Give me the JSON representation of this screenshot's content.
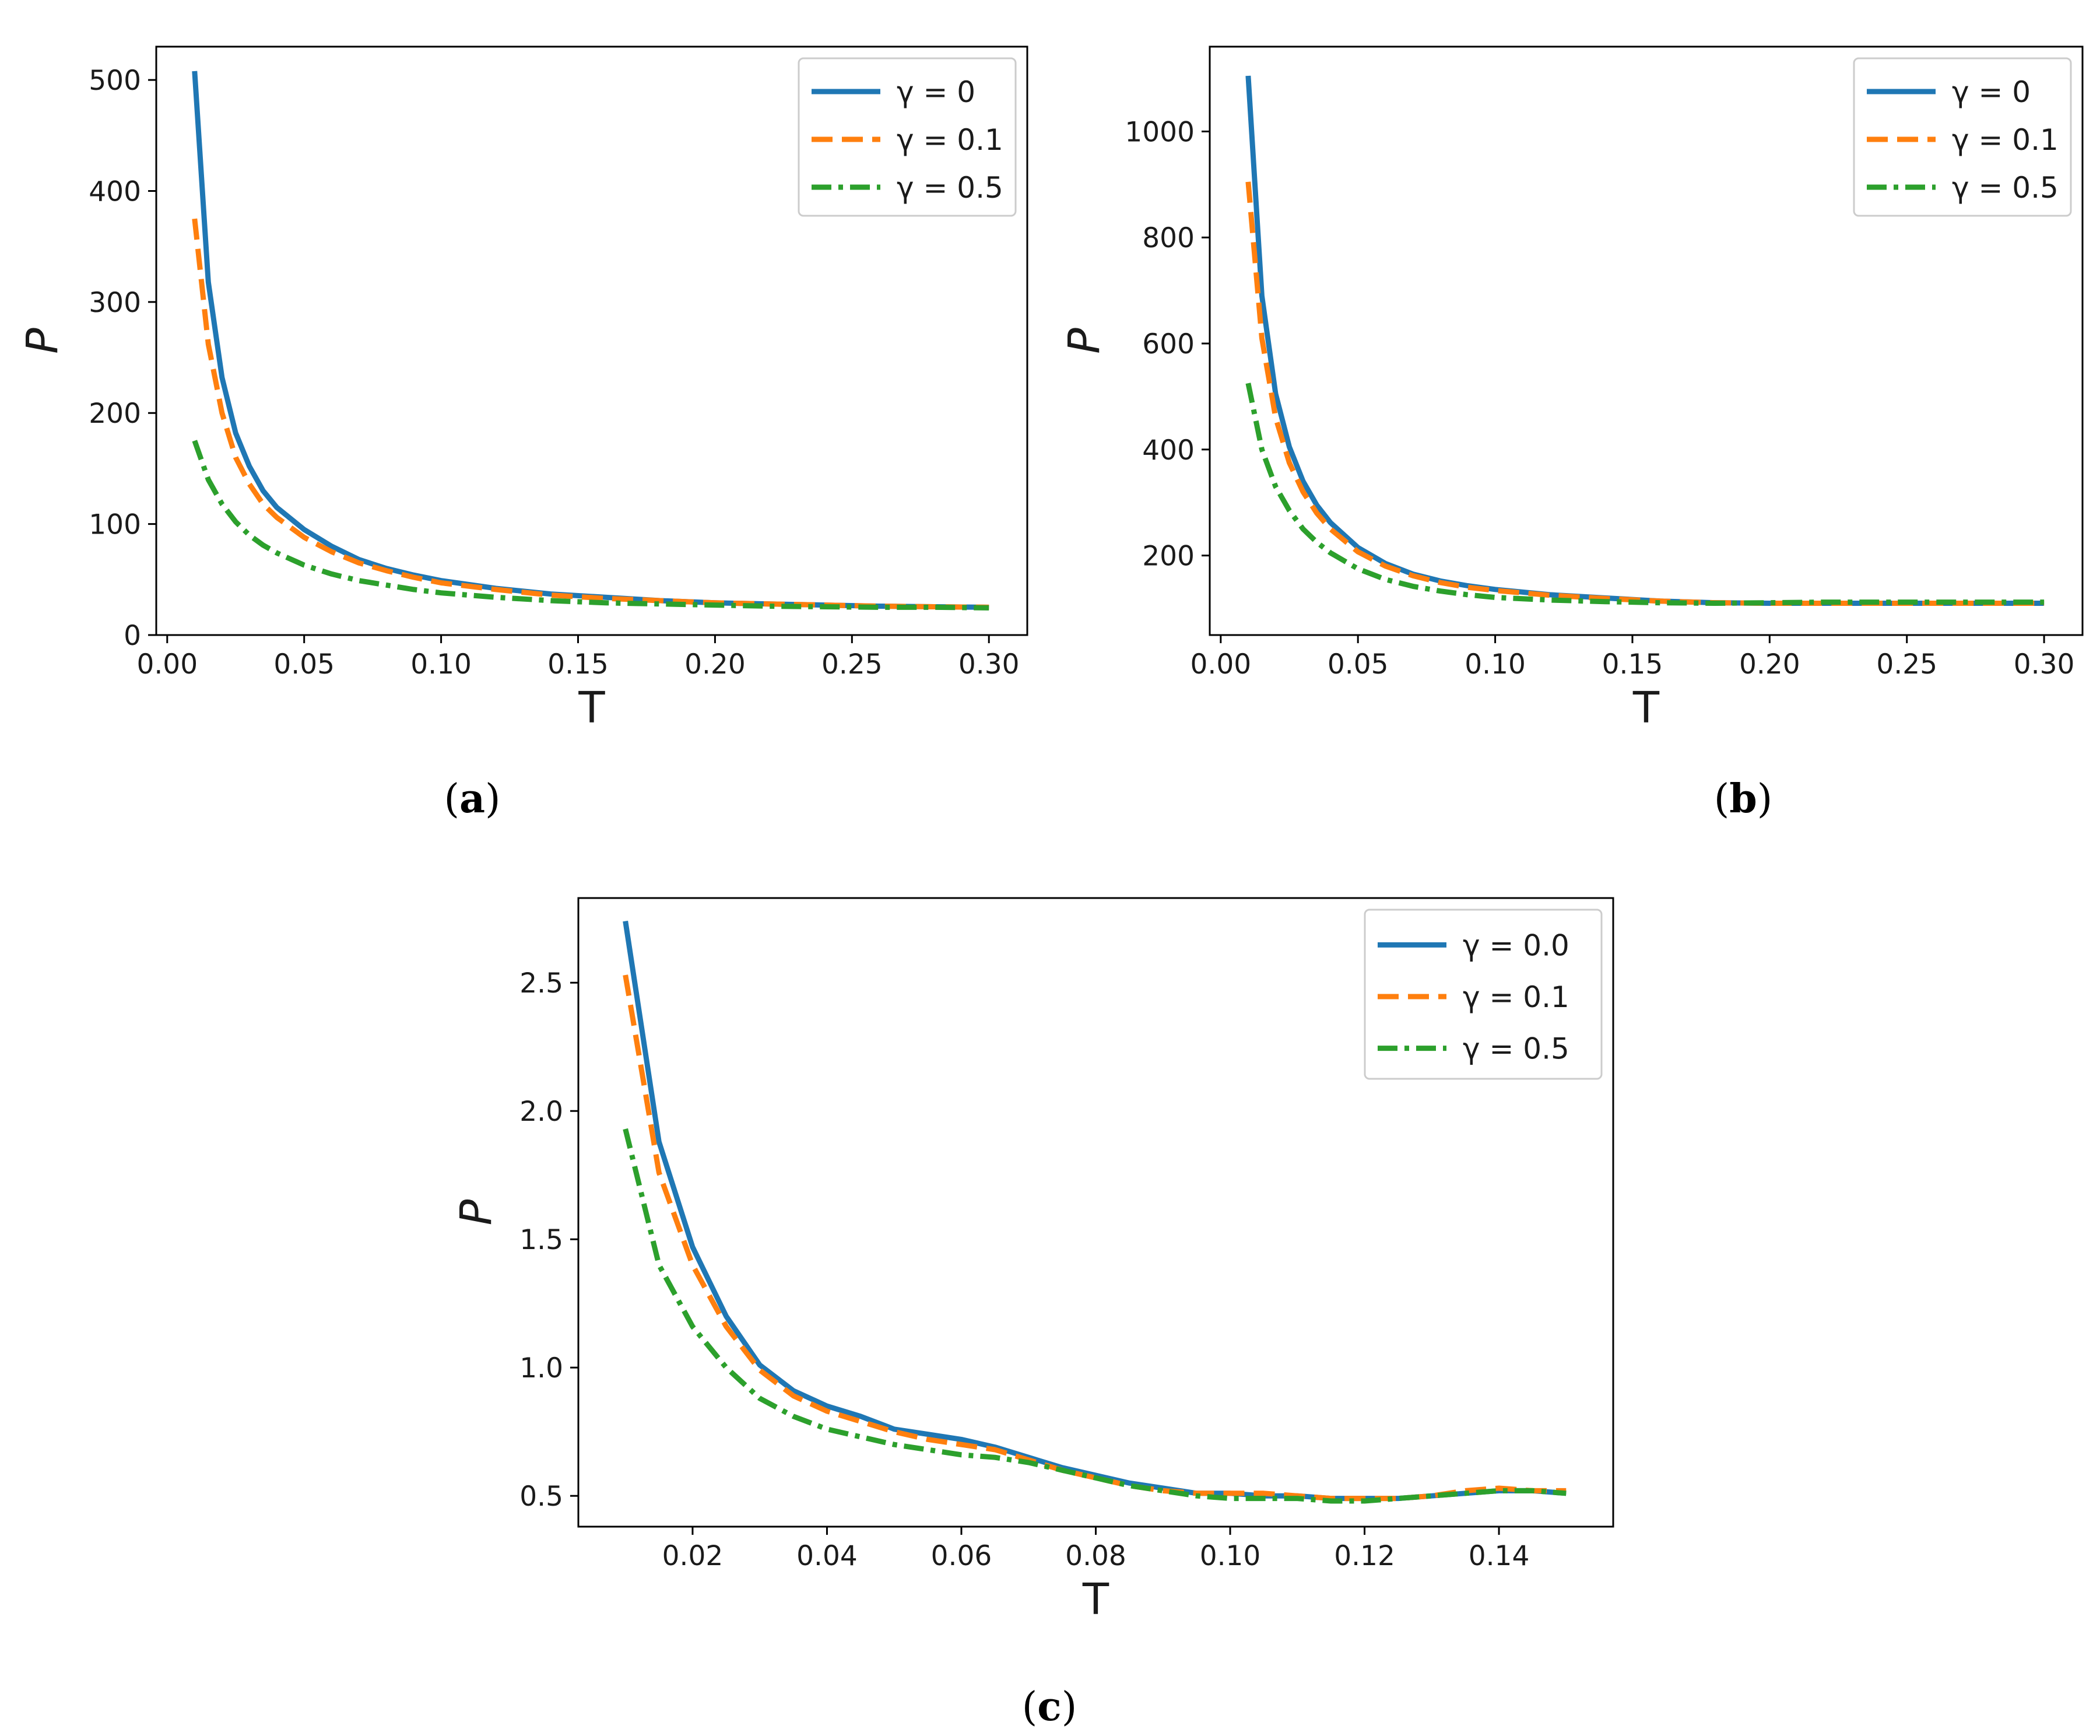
{
  "chart_data": [
    {
      "type": "line",
      "panel_label": "a",
      "xlabel": "T",
      "ylabel": "P",
      "xlim": [
        -0.004,
        0.314
      ],
      "ylim": [
        0,
        530
      ],
      "xticks": [
        0.0,
        0.05,
        0.1,
        0.15,
        0.2,
        0.25,
        0.3
      ],
      "xtick_labels": [
        "0.00",
        "0.05",
        "0.10",
        "0.15",
        "0.20",
        "0.25",
        "0.30"
      ],
      "yticks": [
        0,
        100,
        200,
        300,
        400,
        500
      ],
      "ytick_labels": [
        "0",
        "100",
        "200",
        "300",
        "400",
        "500"
      ],
      "legend_position": "top-right",
      "grid": false,
      "x": [
        0.01,
        0.015,
        0.02,
        0.025,
        0.03,
        0.035,
        0.04,
        0.05,
        0.06,
        0.07,
        0.08,
        0.09,
        0.1,
        0.12,
        0.14,
        0.16,
        0.18,
        0.2,
        0.22,
        0.24,
        0.26,
        0.28,
        0.3
      ],
      "series": [
        {
          "name": "γ = 0",
          "color": "#1f77b4",
          "style": "solid",
          "values": [
            508,
            318,
            232,
            182,
            152,
            130,
            115,
            95,
            80,
            68,
            60,
            54,
            49,
            42,
            37,
            34,
            31,
            29,
            28,
            27,
            26,
            25.5,
            25
          ]
        },
        {
          "name": "γ = 0.1",
          "color": "#ff7f0e",
          "style": "dashed",
          "values": [
            375,
            262,
            200,
            160,
            136,
            118,
            106,
            88,
            75,
            65,
            58,
            52,
            47,
            41,
            36,
            33,
            31,
            29,
            28,
            27,
            26,
            25.5,
            25
          ]
        },
        {
          "name": "γ = 0.5",
          "color": "#2ca02c",
          "style": "dashdot",
          "values": [
            175,
            140,
            118,
            102,
            90,
            81,
            74,
            63,
            55,
            49,
            45,
            41,
            38,
            34,
            31,
            29,
            28,
            27,
            26,
            25.5,
            25,
            25,
            24.5
          ]
        }
      ]
    },
    {
      "type": "line",
      "panel_label": "b",
      "xlabel": "T",
      "ylabel": "P",
      "xlim": [
        -0.004,
        0.314
      ],
      "ylim": [
        50,
        1160
      ],
      "xticks": [
        0.0,
        0.05,
        0.1,
        0.15,
        0.2,
        0.25,
        0.3
      ],
      "xtick_labels": [
        "0.00",
        "0.05",
        "0.10",
        "0.15",
        "0.20",
        "0.25",
        "0.30"
      ],
      "yticks": [
        200,
        400,
        600,
        800,
        1000
      ],
      "ytick_labels": [
        "200",
        "400",
        "600",
        "800",
        "1000"
      ],
      "legend_position": "top-right",
      "grid": false,
      "x": [
        0.01,
        0.015,
        0.02,
        0.025,
        0.03,
        0.035,
        0.04,
        0.05,
        0.06,
        0.07,
        0.08,
        0.09,
        0.1,
        0.12,
        0.14,
        0.16,
        0.18,
        0.2,
        0.22,
        0.24,
        0.26,
        0.28,
        0.3
      ],
      "series": [
        {
          "name": "γ = 0",
          "color": "#1f77b4",
          "style": "solid",
          "values": [
            1105,
            690,
            505,
            405,
            340,
            295,
            262,
            215,
            185,
            165,
            152,
            143,
            136,
            126,
            120,
            114,
            111,
            110,
            110,
            110,
            110,
            110,
            110
          ]
        },
        {
          "name": "γ = 0.1",
          "color": "#ff7f0e",
          "style": "dashed",
          "values": [
            905,
            610,
            460,
            375,
            320,
            280,
            250,
            207,
            180,
            162,
            149,
            140,
            134,
            125,
            119,
            114,
            111,
            110,
            110,
            110,
            110,
            110,
            110
          ]
        },
        {
          "name": "γ = 0.5",
          "color": "#2ca02c",
          "style": "dashdot",
          "values": [
            525,
            400,
            330,
            285,
            250,
            225,
            205,
            175,
            155,
            142,
            133,
            126,
            121,
            116,
            113,
            111,
            110,
            111,
            112,
            112,
            112,
            112,
            112
          ]
        }
      ]
    },
    {
      "type": "line",
      "panel_label": "c",
      "xlabel": "T",
      "ylabel": "P",
      "xlim": [
        0.003,
        0.157
      ],
      "ylim": [
        0.38,
        2.83
      ],
      "xticks": [
        0.02,
        0.04,
        0.06,
        0.08,
        0.1,
        0.12,
        0.14
      ],
      "xtick_labels": [
        "0.02",
        "0.04",
        "0.06",
        "0.08",
        "0.10",
        "0.12",
        "0.14"
      ],
      "yticks": [
        0.5,
        1.0,
        1.5,
        2.0,
        2.5
      ],
      "ytick_labels": [
        "0.5",
        "1.0",
        "1.5",
        "2.0",
        "2.5"
      ],
      "legend_position": "top-right",
      "grid": false,
      "x": [
        0.01,
        0.015,
        0.02,
        0.025,
        0.03,
        0.035,
        0.04,
        0.045,
        0.05,
        0.055,
        0.06,
        0.065,
        0.07,
        0.075,
        0.08,
        0.085,
        0.09,
        0.095,
        0.1,
        0.105,
        0.11,
        0.115,
        0.12,
        0.125,
        0.13,
        0.135,
        0.14,
        0.145,
        0.15
      ],
      "series": [
        {
          "name": "γ = 0.0",
          "color": "#1f77b4",
          "style": "solid",
          "values": [
            2.74,
            1.88,
            1.47,
            1.2,
            1.01,
            0.91,
            0.85,
            0.81,
            0.76,
            0.74,
            0.72,
            0.69,
            0.65,
            0.61,
            0.58,
            0.55,
            0.53,
            0.51,
            0.51,
            0.5,
            0.5,
            0.49,
            0.49,
            0.49,
            0.5,
            0.51,
            0.52,
            0.52,
            0.51
          ]
        },
        {
          "name": "γ = 0.1",
          "color": "#ff7f0e",
          "style": "dashed",
          "values": [
            2.53,
            1.76,
            1.4,
            1.16,
            0.99,
            0.89,
            0.83,
            0.79,
            0.75,
            0.72,
            0.7,
            0.68,
            0.64,
            0.6,
            0.57,
            0.54,
            0.52,
            0.51,
            0.51,
            0.51,
            0.5,
            0.49,
            0.49,
            0.49,
            0.5,
            0.52,
            0.53,
            0.52,
            0.52
          ]
        },
        {
          "name": "γ = 0.5",
          "color": "#2ca02c",
          "style": "dashdot",
          "values": [
            1.93,
            1.4,
            1.16,
            1.0,
            0.88,
            0.81,
            0.76,
            0.73,
            0.7,
            0.68,
            0.66,
            0.65,
            0.63,
            0.6,
            0.57,
            0.54,
            0.52,
            0.5,
            0.49,
            0.49,
            0.49,
            0.48,
            0.48,
            0.49,
            0.5,
            0.51,
            0.52,
            0.52,
            0.51
          ]
        }
      ]
    }
  ]
}
